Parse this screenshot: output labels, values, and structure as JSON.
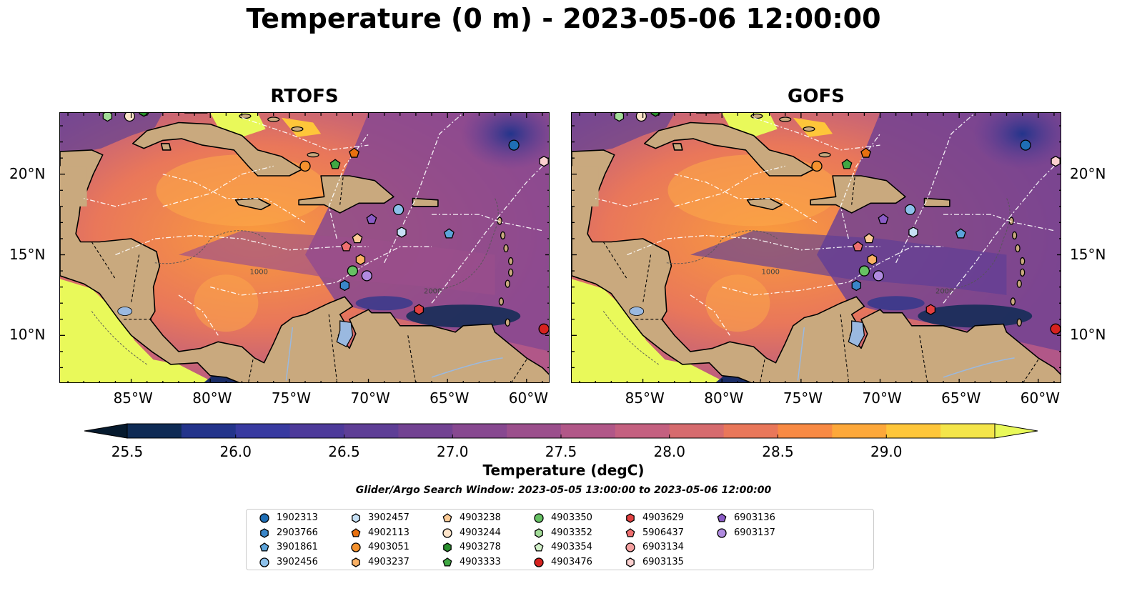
{
  "title": "Temperature (0 m) - 2023-05-06 12:00:00",
  "panels": [
    {
      "title": "RTOFS"
    },
    {
      "title": "GOFS"
    }
  ],
  "lon_ticks": [
    "85°W",
    "80°W",
    "75°W",
    "70°W",
    "65°W",
    "60°W"
  ],
  "lat_ticks": [
    "20°N",
    "15°N",
    "10°N"
  ],
  "map_extent": {
    "lon": [
      -89.5,
      -58.5
    ],
    "lat": [
      7.0,
      23.8
    ]
  },
  "colors": {
    "land": "#c9a97e",
    "lake": "#9ab9e0",
    "bathy_contour": "#555555",
    "eez_boundary": "#ffffff"
  },
  "colorbar": {
    "label": "Temperature (degC)",
    "ticks": [
      "25.5",
      "26.0",
      "26.5",
      "27.0",
      "27.5",
      "28.0",
      "28.5",
      "29.0"
    ],
    "range": [
      25.5,
      29.25
    ],
    "step": 0.25,
    "colors": [
      "#061a2e",
      "#0f2b55",
      "#23348b",
      "#383aa0",
      "#4d3a9a",
      "#5e3e96",
      "#724292",
      "#874890",
      "#9b4f8c",
      "#b15788",
      "#c46080",
      "#d66b6e",
      "#e9775a",
      "#f88a44",
      "#fda83a",
      "#fec63a",
      "#f4e54a",
      "#e9f95a"
    ]
  },
  "contour_labels": [
    "1000",
    "2000"
  ],
  "search_window": "Glider/Argo Search Window: 2023-05-05 13:00:00 to 2023-05-06 12:00:00",
  "legend": [
    {
      "id": "1902313",
      "color": "#1f6eb5",
      "marker": "circle"
    },
    {
      "id": "2903766",
      "color": "#3a86c8",
      "marker": "hexagon"
    },
    {
      "id": "3901861",
      "color": "#5da4da",
      "marker": "pentagon"
    },
    {
      "id": "3902456",
      "color": "#8cc0ea",
      "marker": "circle"
    },
    {
      "id": "3902457",
      "color": "#c6e0f5",
      "marker": "hexagon"
    },
    {
      "id": "4902113",
      "color": "#e8700f",
      "marker": "pentagon"
    },
    {
      "id": "4903051",
      "color": "#f5922e",
      "marker": "circle"
    },
    {
      "id": "4903237",
      "color": "#f9b064",
      "marker": "hexagon"
    },
    {
      "id": "4903238",
      "color": "#fccb96",
      "marker": "pentagon"
    },
    {
      "id": "4903244",
      "color": "#fde4c9",
      "marker": "circle"
    },
    {
      "id": "4903278",
      "color": "#2a8f2e",
      "marker": "hexagon"
    },
    {
      "id": "4903333",
      "color": "#40a843",
      "marker": "pentagon"
    },
    {
      "id": "4903350",
      "color": "#66c163",
      "marker": "circle"
    },
    {
      "id": "4903352",
      "color": "#a3dc98",
      "marker": "hexagon"
    },
    {
      "id": "4903354",
      "color": "#d1f0c8",
      "marker": "pentagon"
    },
    {
      "id": "4903476",
      "color": "#d6221f",
      "marker": "circle"
    },
    {
      "id": "4903629",
      "color": "#e24040",
      "marker": "hexagon"
    },
    {
      "id": "5906437",
      "color": "#ee6f6f",
      "marker": "pentagon"
    },
    {
      "id": "6903134",
      "color": "#f5a0a0",
      "marker": "circle"
    },
    {
      "id": "6903135",
      "color": "#fbd0cf",
      "marker": "hexagon"
    },
    {
      "id": "6903136",
      "color": "#8a5bc6",
      "marker": "pentagon"
    },
    {
      "id": "6903137",
      "color": "#b08be0",
      "marker": "circle"
    }
  ],
  "floats": [
    {
      "id": "1902313",
      "lon": -60.8,
      "lat": 21.8
    },
    {
      "id": "6903135",
      "lon": -58.9,
      "lat": 20.8
    },
    {
      "id": "4903051",
      "lon": -74.0,
      "lat": 20.5
    },
    {
      "id": "4903333",
      "lon": -72.1,
      "lat": 20.6
    },
    {
      "id": "4902113",
      "lon": -70.9,
      "lat": 21.3
    },
    {
      "id": "3902456",
      "lon": -68.1,
      "lat": 17.8
    },
    {
      "id": "6903136",
      "lon": -69.8,
      "lat": 17.2
    },
    {
      "id": "3902457",
      "lon": -67.9,
      "lat": 16.4
    },
    {
      "id": "3901861",
      "lon": -64.9,
      "lat": 16.3
    },
    {
      "id": "4903238",
      "lon": -70.7,
      "lat": 16.0
    },
    {
      "id": "5906437",
      "lon": -71.4,
      "lat": 15.5
    },
    {
      "id": "4903237",
      "lon": -70.5,
      "lat": 14.7
    },
    {
      "id": "4903350",
      "lon": -71.0,
      "lat": 14.0
    },
    {
      "id": "6903137",
      "lon": -70.1,
      "lat": 13.7
    },
    {
      "id": "2903766",
      "lon": -71.5,
      "lat": 13.1
    },
    {
      "id": "4903629",
      "lon": -66.8,
      "lat": 11.6
    },
    {
      "id": "4903476",
      "lon": -58.9,
      "lat": 10.4
    },
    {
      "id": "4903352",
      "lon": -86.5,
      "lat": 23.6
    },
    {
      "id": "4903244",
      "lon": -85.1,
      "lat": 23.6
    },
    {
      "id": "4903278",
      "lon": -84.2,
      "lat": 23.9
    }
  ]
}
